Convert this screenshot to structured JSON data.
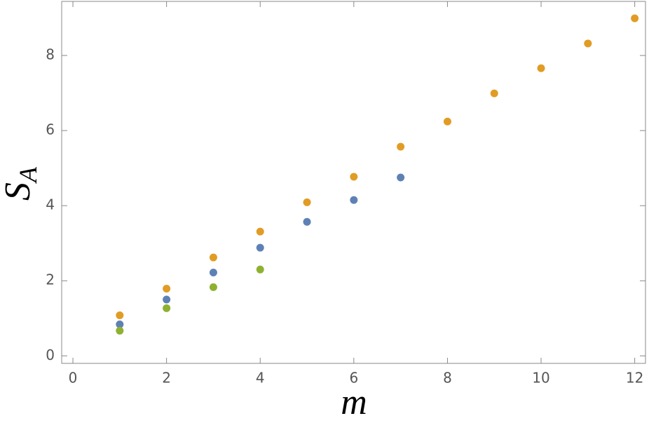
{
  "chart_data": {
    "type": "scatter",
    "x_label": "m",
    "y_label": "S",
    "y_label_subscript": "A",
    "xlim": [
      -0.24,
      12.23
    ],
    "ylim": [
      -0.2,
      9.44
    ],
    "xticks": [
      0,
      2,
      4,
      6,
      8,
      10,
      12
    ],
    "yticks": [
      0,
      2,
      4,
      6,
      8
    ],
    "series": [
      {
        "color": "#e19c24",
        "x": [
          1,
          2,
          3,
          4,
          5,
          6,
          7,
          8,
          9,
          10,
          11,
          12
        ],
        "values": [
          1.08,
          1.79,
          2.62,
          3.31,
          4.09,
          4.77,
          5.57,
          6.24,
          6.99,
          7.66,
          8.32,
          8.99
        ]
      },
      {
        "color": "#5e81b5",
        "x": [
          1,
          2,
          3,
          4,
          5,
          6,
          7
        ],
        "values": [
          0.84,
          1.5,
          2.22,
          2.88,
          3.57,
          4.15,
          4.75
        ]
      },
      {
        "color": "#8fb131",
        "x": [
          1,
          2,
          3,
          4
        ],
        "values": [
          0.67,
          1.27,
          1.83,
          2.3
        ]
      }
    ]
  }
}
